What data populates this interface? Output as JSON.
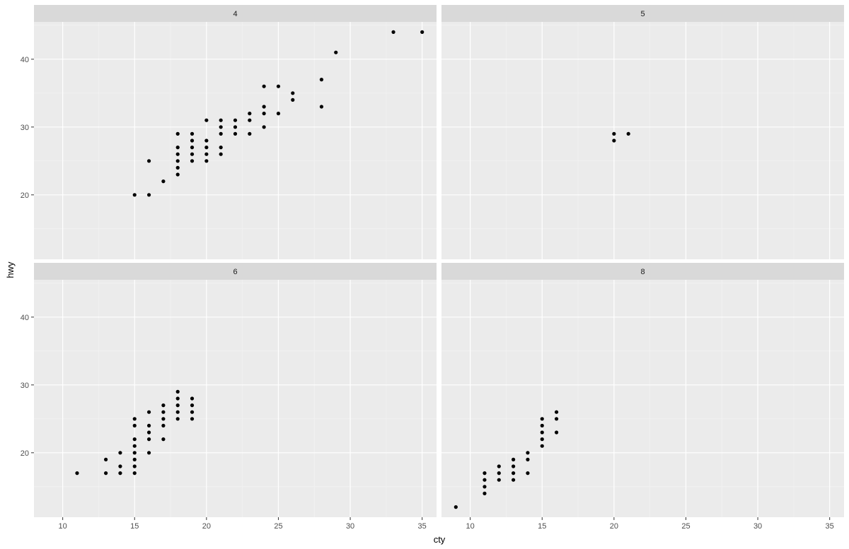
{
  "chart_data": {
    "type": "scatter",
    "facet_by": "cyl",
    "xlabel": "cty",
    "ylabel": "hwy",
    "xlim": [
      8,
      36
    ],
    "ylim": [
      10.5,
      45.5
    ],
    "x_ticks": [
      10,
      15,
      20,
      25,
      30,
      35
    ],
    "y_ticks": [
      20,
      30,
      40
    ],
    "grid": true,
    "colors": {
      "panel_bg": "#ebebeb",
      "strip_bg": "#d9d9d9",
      "grid_major": "#ffffff",
      "grid_minor": "#f4f4f4",
      "point": "#000000"
    },
    "panels": [
      {
        "label": "4",
        "points": [
          [
            15,
            20
          ],
          [
            16,
            20
          ],
          [
            16,
            25
          ],
          [
            17,
            22
          ],
          [
            18,
            23
          ],
          [
            18,
            24
          ],
          [
            18,
            25
          ],
          [
            18,
            26
          ],
          [
            18,
            27
          ],
          [
            18,
            29
          ],
          [
            19,
            25
          ],
          [
            19,
            26
          ],
          [
            19,
            27
          ],
          [
            19,
            28
          ],
          [
            19,
            29
          ],
          [
            20,
            25
          ],
          [
            20,
            26
          ],
          [
            20,
            27
          ],
          [
            20,
            28
          ],
          [
            20,
            31
          ],
          [
            21,
            26
          ],
          [
            21,
            27
          ],
          [
            21,
            29
          ],
          [
            21,
            30
          ],
          [
            21,
            31
          ],
          [
            22,
            29
          ],
          [
            22,
            30
          ],
          [
            22,
            31
          ],
          [
            23,
            29
          ],
          [
            23,
            31
          ],
          [
            23,
            32
          ],
          [
            24,
            30
          ],
          [
            24,
            32
          ],
          [
            24,
            33
          ],
          [
            24,
            36
          ],
          [
            25,
            32
          ],
          [
            25,
            36
          ],
          [
            26,
            34
          ],
          [
            26,
            35
          ],
          [
            28,
            33
          ],
          [
            28,
            37
          ],
          [
            29,
            41
          ],
          [
            33,
            44
          ],
          [
            35,
            44
          ]
        ]
      },
      {
        "label": "5",
        "points": [
          [
            20,
            28
          ],
          [
            20,
            29
          ],
          [
            21,
            29
          ]
        ]
      },
      {
        "label": "6",
        "points": [
          [
            11,
            17
          ],
          [
            13,
            17
          ],
          [
            13,
            19
          ],
          [
            14,
            17
          ],
          [
            14,
            18
          ],
          [
            14,
            20
          ],
          [
            15,
            17
          ],
          [
            15,
            18
          ],
          [
            15,
            19
          ],
          [
            15,
            20
          ],
          [
            15,
            21
          ],
          [
            15,
            22
          ],
          [
            15,
            24
          ],
          [
            15,
            25
          ],
          [
            16,
            20
          ],
          [
            16,
            22
          ],
          [
            16,
            23
          ],
          [
            16,
            24
          ],
          [
            16,
            26
          ],
          [
            17,
            22
          ],
          [
            17,
            24
          ],
          [
            17,
            25
          ],
          [
            17,
            26
          ],
          [
            17,
            27
          ],
          [
            18,
            25
          ],
          [
            18,
            26
          ],
          [
            18,
            27
          ],
          [
            18,
            28
          ],
          [
            18,
            29
          ],
          [
            19,
            25
          ],
          [
            19,
            26
          ],
          [
            19,
            27
          ],
          [
            19,
            28
          ]
        ]
      },
      {
        "label": "8",
        "points": [
          [
            9,
            12
          ],
          [
            11,
            14
          ],
          [
            11,
            15
          ],
          [
            11,
            16
          ],
          [
            11,
            17
          ],
          [
            12,
            16
          ],
          [
            12,
            17
          ],
          [
            12,
            18
          ],
          [
            13,
            16
          ],
          [
            13,
            17
          ],
          [
            13,
            18
          ],
          [
            13,
            19
          ],
          [
            14,
            17
          ],
          [
            14,
            19
          ],
          [
            14,
            20
          ],
          [
            15,
            21
          ],
          [
            15,
            22
          ],
          [
            15,
            23
          ],
          [
            15,
            24
          ],
          [
            15,
            25
          ],
          [
            16,
            23
          ],
          [
            16,
            25
          ],
          [
            16,
            26
          ]
        ]
      }
    ]
  }
}
